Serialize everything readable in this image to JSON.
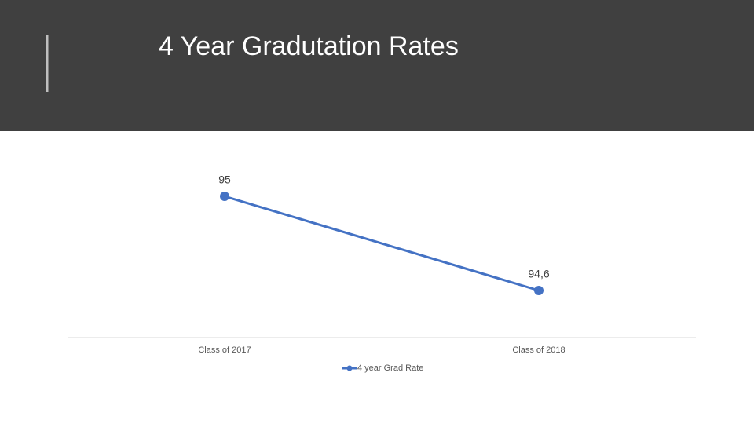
{
  "chart_data": {
    "type": "line",
    "title": "4 Year Gradutation Rates",
    "categories": [
      "Class of 2017",
      "Class of 2018"
    ],
    "series": [
      {
        "name": "4 year Grad Rate",
        "color": "#4472c4",
        "values": [
          95,
          94.6
        ],
        "value_labels": [
          "95",
          "94,6"
        ]
      }
    ],
    "ylim": [
      94.4,
      95.2
    ],
    "legend": "bottom"
  }
}
